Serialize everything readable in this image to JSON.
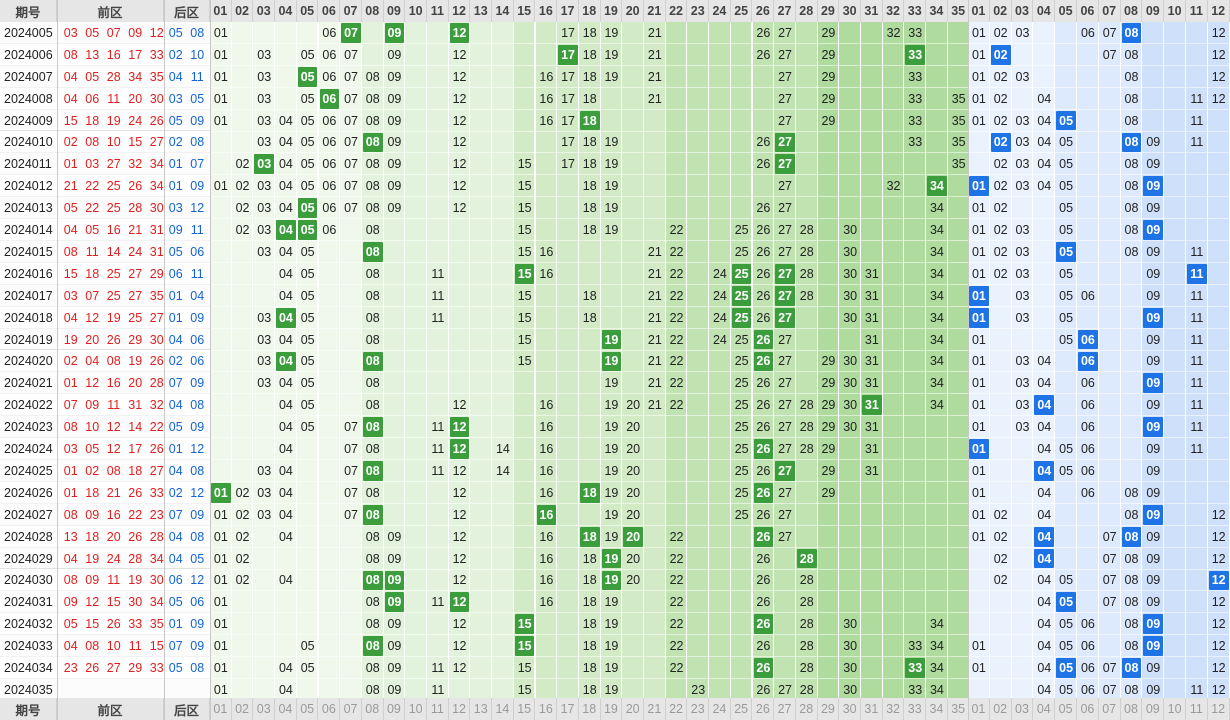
{
  "header": {
    "period_label": "期号",
    "front_label": "前区",
    "back_label": "后区",
    "front_numbers": [
      "01",
      "02",
      "03",
      "04",
      "05",
      "06",
      "07",
      "08",
      "09",
      "10",
      "11",
      "12",
      "13",
      "14",
      "15",
      "16",
      "17",
      "18",
      "19",
      "20",
      "21",
      "22",
      "23",
      "24",
      "25",
      "26",
      "27",
      "28",
      "29",
      "30",
      "31",
      "32",
      "33",
      "34",
      "35"
    ],
    "back_numbers": [
      "01",
      "02",
      "03",
      "04",
      "05",
      "06",
      "07",
      "08",
      "09",
      "10",
      "11",
      "12"
    ]
  },
  "colors": {
    "front_draw": "#e02020",
    "back_draw": "#1464d6",
    "front_hit": "#3c9d3c",
    "back_hit": "#1e74e6",
    "front_band_light": "#eef7ea",
    "front_band_mid": "#d6eccd",
    "front_band_dark": "#b9e0ad",
    "back_band_light": "#e6f0fd",
    "back_band_mid": "#d3e4fb"
  },
  "rows": [
    {
      "period": "2024005",
      "front": [
        "03",
        "05",
        "07",
        "09",
        "12"
      ],
      "back": [
        "05",
        "08"
      ],
      "fcand": [
        "01",
        "06",
        "07",
        "09",
        "12",
        "17",
        "18",
        "19",
        "21",
        "26",
        "27",
        "29",
        "32",
        "33"
      ],
      "bcand": [
        "01",
        "02",
        "03",
        "06",
        "07",
        "08",
        "12"
      ]
    },
    {
      "period": "2024006",
      "front": [
        "08",
        "13",
        "16",
        "17",
        "33"
      ],
      "back": [
        "02",
        "10"
      ],
      "fcand": [
        "01",
        "03",
        "05",
        "06",
        "07",
        "09",
        "12",
        "17",
        "18",
        "19",
        "21",
        "26",
        "27",
        "29",
        "33"
      ],
      "bcand": [
        "01",
        "02",
        "07",
        "08",
        "12"
      ]
    },
    {
      "period": "2024007",
      "front": [
        "04",
        "05",
        "28",
        "34",
        "35"
      ],
      "back": [
        "04",
        "11"
      ],
      "fcand": [
        "01",
        "03",
        "05",
        "06",
        "07",
        "08",
        "09",
        "12",
        "16",
        "17",
        "18",
        "19",
        "21",
        "27",
        "29",
        "33"
      ],
      "bcand": [
        "01",
        "02",
        "03",
        "08",
        "12"
      ]
    },
    {
      "period": "2024008",
      "front": [
        "04",
        "06",
        "11",
        "20",
        "30"
      ],
      "back": [
        "03",
        "05"
      ],
      "fcand": [
        "01",
        "03",
        "05",
        "06",
        "07",
        "08",
        "09",
        "12",
        "16",
        "17",
        "18",
        "21",
        "27",
        "29",
        "33",
        "35"
      ],
      "bcand": [
        "01",
        "02",
        "04",
        "08",
        "11",
        "12"
      ]
    },
    {
      "period": "2024009",
      "front": [
        "15",
        "18",
        "19",
        "24",
        "26"
      ],
      "back": [
        "05",
        "09"
      ],
      "fcand": [
        "01",
        "03",
        "04",
        "05",
        "06",
        "07",
        "08",
        "09",
        "12",
        "16",
        "17",
        "18",
        "27",
        "29",
        "33",
        "35"
      ],
      "bcand": [
        "01",
        "02",
        "03",
        "04",
        "05",
        "08",
        "11"
      ]
    },
    {
      "period": "2024010",
      "front": [
        "02",
        "08",
        "10",
        "15",
        "27"
      ],
      "back": [
        "02",
        "08"
      ],
      "fcand": [
        "03",
        "04",
        "05",
        "06",
        "07",
        "08",
        "09",
        "12",
        "17",
        "18",
        "19",
        "26",
        "27",
        "33",
        "35"
      ],
      "bcand": [
        "02",
        "03",
        "04",
        "05",
        "08",
        "09",
        "11"
      ]
    },
    {
      "period": "2024011",
      "front": [
        "01",
        "03",
        "27",
        "32",
        "34"
      ],
      "back": [
        "01",
        "07"
      ],
      "fcand": [
        "02",
        "03",
        "04",
        "05",
        "06",
        "07",
        "08",
        "09",
        "12",
        "15",
        "17",
        "18",
        "19",
        "26",
        "27",
        "35"
      ],
      "bcand": [
        "02",
        "03",
        "04",
        "05",
        "08",
        "09"
      ]
    },
    {
      "period": "2024012",
      "front": [
        "21",
        "22",
        "25",
        "26",
        "34"
      ],
      "back": [
        "01",
        "09"
      ],
      "fcand": [
        "01",
        "02",
        "03",
        "04",
        "05",
        "06",
        "07",
        "08",
        "09",
        "12",
        "15",
        "18",
        "19",
        "27",
        "32",
        "34"
      ],
      "bcand": [
        "01",
        "02",
        "03",
        "04",
        "05",
        "08",
        "09"
      ]
    },
    {
      "period": "2024013",
      "front": [
        "05",
        "22",
        "25",
        "28",
        "30"
      ],
      "back": [
        "03",
        "12"
      ],
      "fcand": [
        "02",
        "03",
        "04",
        "05",
        "06",
        "07",
        "08",
        "09",
        "12",
        "15",
        "18",
        "19",
        "26",
        "27",
        "34"
      ],
      "bcand": [
        "01",
        "02",
        "05",
        "08",
        "09"
      ]
    },
    {
      "period": "2024014",
      "front": [
        "04",
        "05",
        "16",
        "21",
        "31"
      ],
      "back": [
        "09",
        "11"
      ],
      "fcand": [
        "02",
        "03",
        "04",
        "05",
        "06",
        "08",
        "15",
        "18",
        "19",
        "22",
        "25",
        "26",
        "27",
        "28",
        "30",
        "34"
      ],
      "bcand": [
        "01",
        "02",
        "03",
        "05",
        "08",
        "09"
      ]
    },
    {
      "period": "2024015",
      "front": [
        "08",
        "11",
        "14",
        "24",
        "31"
      ],
      "back": [
        "05",
        "06"
      ],
      "fcand": [
        "03",
        "04",
        "05",
        "08",
        "15",
        "16",
        "21",
        "22",
        "25",
        "26",
        "27",
        "28",
        "30",
        "34"
      ],
      "bcand": [
        "01",
        "02",
        "03",
        "05",
        "08",
        "09",
        "11"
      ]
    },
    {
      "period": "2024016",
      "front": [
        "15",
        "18",
        "25",
        "27",
        "29"
      ],
      "back": [
        "06",
        "11"
      ],
      "fcand": [
        "04",
        "05",
        "08",
        "11",
        "15",
        "16",
        "21",
        "22",
        "24",
        "25",
        "26",
        "27",
        "28",
        "30",
        "31",
        "34"
      ],
      "bcand": [
        "01",
        "02",
        "03",
        "05",
        "09",
        "11"
      ]
    },
    {
      "period": "2024017",
      "front": [
        "03",
        "07",
        "25",
        "27",
        "35"
      ],
      "back": [
        "01",
        "04"
      ],
      "fcand": [
        "04",
        "05",
        "08",
        "11",
        "15",
        "18",
        "21",
        "22",
        "24",
        "25",
        "26",
        "27",
        "28",
        "30",
        "31",
        "34"
      ],
      "bcand": [
        "01",
        "03",
        "05",
        "06",
        "09",
        "11"
      ]
    },
    {
      "period": "2024018",
      "front": [
        "04",
        "12",
        "19",
        "25",
        "27"
      ],
      "back": [
        "01",
        "09"
      ],
      "fcand": [
        "03",
        "04",
        "05",
        "08",
        "11",
        "15",
        "18",
        "21",
        "22",
        "24",
        "25",
        "26",
        "27",
        "30",
        "31",
        "34"
      ],
      "bcand": [
        "01",
        "03",
        "05",
        "09",
        "11"
      ]
    },
    {
      "period": "2024019",
      "front": [
        "19",
        "20",
        "26",
        "29",
        "30"
      ],
      "back": [
        "04",
        "06"
      ],
      "fcand": [
        "03",
        "04",
        "05",
        "08",
        "15",
        "19",
        "21",
        "22",
        "24",
        "25",
        "26",
        "27",
        "31",
        "34"
      ],
      "bcand": [
        "01",
        "05",
        "06",
        "09",
        "11"
      ]
    },
    {
      "period": "2024020",
      "front": [
        "02",
        "04",
        "08",
        "19",
        "26"
      ],
      "back": [
        "02",
        "06"
      ],
      "fcand": [
        "03",
        "04",
        "05",
        "08",
        "15",
        "19",
        "21",
        "22",
        "25",
        "26",
        "27",
        "29",
        "30",
        "31",
        "34"
      ],
      "bcand": [
        "01",
        "03",
        "04",
        "06",
        "09",
        "11"
      ]
    },
    {
      "period": "2024021",
      "front": [
        "01",
        "12",
        "16",
        "20",
        "28"
      ],
      "back": [
        "07",
        "09"
      ],
      "fcand": [
        "03",
        "04",
        "05",
        "08",
        "19",
        "21",
        "22",
        "25",
        "26",
        "27",
        "29",
        "30",
        "31",
        "34"
      ],
      "bcand": [
        "01",
        "03",
        "04",
        "06",
        "09",
        "11"
      ]
    },
    {
      "period": "2024022",
      "front": [
        "07",
        "09",
        "11",
        "31",
        "32"
      ],
      "back": [
        "04",
        "08"
      ],
      "fcand": [
        "04",
        "05",
        "08",
        "12",
        "16",
        "19",
        "20",
        "21",
        "22",
        "25",
        "26",
        "27",
        "28",
        "29",
        "30",
        "31",
        "34"
      ],
      "bcand": [
        "01",
        "03",
        "04",
        "06",
        "09",
        "11"
      ]
    },
    {
      "period": "2024023",
      "front": [
        "08",
        "10",
        "12",
        "14",
        "22"
      ],
      "back": [
        "05",
        "09"
      ],
      "fcand": [
        "04",
        "05",
        "07",
        "08",
        "11",
        "12",
        "16",
        "19",
        "20",
        "25",
        "26",
        "27",
        "28",
        "29",
        "30",
        "31"
      ],
      "bcand": [
        "01",
        "03",
        "04",
        "06",
        "09",
        "11"
      ]
    },
    {
      "period": "2024024",
      "front": [
        "03",
        "05",
        "12",
        "17",
        "26"
      ],
      "back": [
        "01",
        "12"
      ],
      "fcand": [
        "04",
        "07",
        "08",
        "11",
        "12",
        "14",
        "16",
        "19",
        "20",
        "25",
        "26",
        "27",
        "28",
        "29",
        "31"
      ],
      "bcand": [
        "01",
        "04",
        "05",
        "06",
        "09",
        "11"
      ]
    },
    {
      "period": "2024025",
      "front": [
        "01",
        "02",
        "08",
        "18",
        "27"
      ],
      "back": [
        "04",
        "08"
      ],
      "fcand": [
        "03",
        "04",
        "07",
        "08",
        "11",
        "12",
        "14",
        "16",
        "19",
        "20",
        "25",
        "26",
        "27",
        "29",
        "31"
      ],
      "bcand": [
        "01",
        "04",
        "05",
        "06",
        "09"
      ]
    },
    {
      "period": "2024026",
      "front": [
        "01",
        "18",
        "21",
        "26",
        "33"
      ],
      "back": [
        "02",
        "12"
      ],
      "fcand": [
        "01",
        "02",
        "03",
        "04",
        "07",
        "08",
        "12",
        "16",
        "18",
        "19",
        "20",
        "25",
        "26",
        "27",
        "29"
      ],
      "bcand": [
        "01",
        "04",
        "06",
        "08",
        "09"
      ]
    },
    {
      "period": "2024027",
      "front": [
        "08",
        "09",
        "16",
        "22",
        "23"
      ],
      "back": [
        "07",
        "09"
      ],
      "fcand": [
        "01",
        "02",
        "03",
        "04",
        "07",
        "08",
        "12",
        "16",
        "19",
        "20",
        "25",
        "26",
        "27"
      ],
      "bcand": [
        "01",
        "02",
        "04",
        "08",
        "09",
        "12"
      ]
    },
    {
      "period": "2024028",
      "front": [
        "13",
        "18",
        "20",
        "26",
        "28"
      ],
      "back": [
        "04",
        "08"
      ],
      "fcand": [
        "01",
        "02",
        "04",
        "08",
        "09",
        "12",
        "16",
        "18",
        "19",
        "20",
        "22",
        "26",
        "27"
      ],
      "bcand": [
        "01",
        "02",
        "04",
        "07",
        "08",
        "09",
        "12"
      ]
    },
    {
      "period": "2024029",
      "front": [
        "04",
        "19",
        "24",
        "28",
        "34"
      ],
      "back": [
        "04",
        "05"
      ],
      "fcand": [
        "01",
        "02",
        "08",
        "09",
        "12",
        "16",
        "18",
        "19",
        "20",
        "22",
        "26",
        "28"
      ],
      "bcand": [
        "02",
        "04",
        "07",
        "08",
        "09",
        "12"
      ]
    },
    {
      "period": "2024030",
      "front": [
        "08",
        "09",
        "11",
        "19",
        "30"
      ],
      "back": [
        "06",
        "12"
      ],
      "fcand": [
        "01",
        "02",
        "04",
        "08",
        "09",
        "12",
        "16",
        "18",
        "19",
        "20",
        "22",
        "26",
        "28"
      ],
      "bcand": [
        "02",
        "04",
        "05",
        "07",
        "08",
        "09",
        "12"
      ]
    },
    {
      "period": "2024031",
      "front": [
        "09",
        "12",
        "15",
        "30",
        "34"
      ],
      "back": [
        "05",
        "06"
      ],
      "fcand": [
        "01",
        "08",
        "09",
        "11",
        "12",
        "16",
        "18",
        "19",
        "22",
        "26",
        "28"
      ],
      "bcand": [
        "04",
        "05",
        "07",
        "08",
        "09",
        "12"
      ]
    },
    {
      "period": "2024032",
      "front": [
        "05",
        "15",
        "26",
        "33",
        "35"
      ],
      "back": [
        "01",
        "09"
      ],
      "fcand": [
        "01",
        "08",
        "09",
        "12",
        "15",
        "18",
        "19",
        "22",
        "26",
        "28",
        "30",
        "34"
      ],
      "bcand": [
        "04",
        "05",
        "06",
        "08",
        "09",
        "12"
      ]
    },
    {
      "period": "2024033",
      "front": [
        "04",
        "08",
        "10",
        "11",
        "15"
      ],
      "back": [
        "07",
        "09"
      ],
      "fcand": [
        "01",
        "05",
        "08",
        "09",
        "12",
        "15",
        "18",
        "19",
        "22",
        "26",
        "28",
        "30",
        "33",
        "34"
      ],
      "bcand": [
        "01",
        "04",
        "05",
        "06",
        "08",
        "09",
        "12"
      ]
    },
    {
      "period": "2024034",
      "front": [
        "23",
        "26",
        "27",
        "29",
        "33"
      ],
      "back": [
        "05",
        "08"
      ],
      "fcand": [
        "01",
        "04",
        "05",
        "08",
        "09",
        "11",
        "12",
        "15",
        "18",
        "19",
        "22",
        "26",
        "28",
        "30",
        "33",
        "34"
      ],
      "bcand": [
        "01",
        "04",
        "05",
        "06",
        "07",
        "08",
        "09",
        "12"
      ]
    },
    {
      "period": "2024035",
      "front": [],
      "back": [],
      "fcand": [
        "01",
        "04",
        "08",
        "09",
        "11",
        "15",
        "18",
        "19",
        "23",
        "26",
        "27",
        "28",
        "30",
        "33",
        "34"
      ],
      "bcand": [
        "04",
        "05",
        "06",
        "07",
        "08",
        "09",
        "11",
        "12"
      ]
    }
  ]
}
